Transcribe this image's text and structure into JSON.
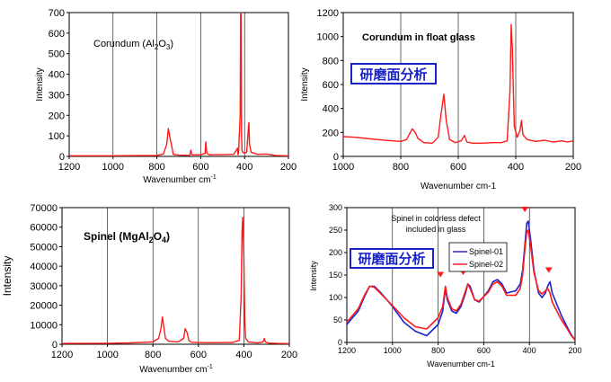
{
  "colors": {
    "series_red": "#ff1a1a",
    "series_blue": "#1a23c8",
    "marker": "#ff1a1a",
    "annotation_box": "#1a23c8"
  },
  "chart_data": [
    {
      "id": "corundum",
      "type": "line",
      "title": "Corundum (Al",
      "formula": {
        "base": "Corundum (Al",
        "sub1": "2",
        "mid": "O",
        "sub2": "3",
        "end": ")"
      },
      "xlabel": "Wavenumber cm",
      "xlabel_sup": "-1",
      "ylabel": "Intensity",
      "xlim": [
        1200,
        200
      ],
      "ylim": [
        0,
        700
      ],
      "xticks": [
        "1200",
        "1000",
        "800",
        "600",
        "400",
        "200"
      ],
      "yticks": [
        "0",
        "100",
        "200",
        "300",
        "400",
        "500",
        "600",
        "700"
      ],
      "grid": "vertical",
      "series": [
        {
          "color": "#ff1a1a",
          "x": [
            1200,
            1000,
            800,
            770,
            755,
            748,
            740,
            725,
            700,
            650,
            645,
            640,
            600,
            580,
            577,
            572,
            560,
            450,
            432,
            430,
            428,
            420,
            418,
            416,
            414,
            412,
            408,
            400,
            390,
            382,
            380,
            378,
            370,
            340,
            300,
            260,
            220,
            200
          ],
          "y": [
            3,
            3,
            5,
            12,
            60,
            135,
            90,
            10,
            6,
            5,
            30,
            8,
            8,
            15,
            70,
            15,
            8,
            10,
            40,
            8,
            12,
            200,
            700,
            690,
            120,
            30,
            20,
            15,
            20,
            150,
            165,
            60,
            20,
            10,
            12,
            5,
            3,
            3
          ]
        }
      ]
    },
    {
      "id": "corundum-float",
      "type": "line",
      "title": "Corundum in float glass",
      "annotation": "研磨面分析",
      "xlabel": "Wavenumber cm-1",
      "ylabel": "Intensity",
      "xlim": [
        1000,
        200
      ],
      "ylim": [
        0,
        1200
      ],
      "xticks": [
        "1000",
        "800",
        "600",
        "400",
        "200"
      ],
      "yticks": [
        "0",
        "200",
        "400",
        "600",
        "800",
        "1000",
        "1200"
      ],
      "grid": "vertical",
      "series": [
        {
          "color": "#ff1a1a",
          "x": [
            1000,
            960,
            920,
            880,
            840,
            800,
            780,
            760,
            750,
            740,
            720,
            690,
            670,
            660,
            650,
            642,
            630,
            610,
            590,
            578,
            570,
            550,
            520,
            480,
            450,
            430,
            420,
            416,
            412,
            405,
            395,
            385,
            380,
            375,
            360,
            330,
            300,
            270,
            240,
            220,
            200
          ],
          "y": [
            165,
            160,
            150,
            140,
            132,
            125,
            140,
            230,
            200,
            150,
            115,
            110,
            160,
            350,
            520,
            300,
            140,
            115,
            130,
            175,
            120,
            110,
            110,
            115,
            115,
            130,
            550,
            1100,
            900,
            250,
            160,
            220,
            300,
            180,
            140,
            125,
            135,
            120,
            130,
            120,
            130
          ]
        }
      ]
    },
    {
      "id": "spinel",
      "type": "line",
      "title": "Spinel (MgAl",
      "formula": {
        "base": "Spinel (MgAl",
        "sub1": "2",
        "mid": "O",
        "sub2": "4",
        "end": ")"
      },
      "xlabel": "Wavenumber cm",
      "xlabel_sup": "-1",
      "ylabel": "Intensity",
      "xlim": [
        1200,
        200
      ],
      "ylim": [
        0,
        70000
      ],
      "xticks": [
        "1200",
        "1000",
        "800",
        "600",
        "400",
        "200"
      ],
      "yticks": [
        "0",
        "10000",
        "20000",
        "30000",
        "40000",
        "50000",
        "60000",
        "70000"
      ],
      "grid": "vertical",
      "series": [
        {
          "color": "#ff1a1a",
          "x": [
            1200,
            1000,
            900,
            800,
            775,
            765,
            758,
            752,
            745,
            730,
            690,
            665,
            658,
            650,
            642,
            630,
            560,
            450,
            420,
            412,
            408,
            405,
            400,
            396,
            392,
            380,
            340,
            315,
            310,
            305,
            290,
            250,
            200
          ],
          "y": [
            400,
            500,
            700,
            1200,
            3000,
            8000,
            14000,
            9000,
            3000,
            1500,
            1200,
            3000,
            8000,
            6000,
            2000,
            1000,
            800,
            900,
            2000,
            25000,
            58000,
            65000,
            45000,
            12000,
            3000,
            1200,
            700,
            1200,
            3000,
            1200,
            600,
            400,
            300
          ]
        }
      ]
    },
    {
      "id": "spinel-defect",
      "type": "line",
      "title": "Spinel in colorless defect",
      "subtitle": "included in glass",
      "annotation": "研磨面分析",
      "xlabel": "Wavenumber cm-1",
      "ylabel": "Intensity",
      "xlim": [
        1200,
        200
      ],
      "ylim": [
        0,
        300
      ],
      "xticks": [
        "1200",
        "1000",
        "800",
        "600",
        "400",
        "200"
      ],
      "yticks": [
        "0",
        "50",
        "100",
        "150",
        "200",
        "250",
        "300"
      ],
      "grid": "vertical",
      "legend": "top-center",
      "peak_markers_x": [
        790,
        690,
        420,
        315
      ],
      "series": [
        {
          "name": "Spinel-01",
          "color": "#1a23c8",
          "x": [
            1200,
            1150,
            1120,
            1100,
            1080,
            1050,
            1000,
            950,
            900,
            850,
            800,
            780,
            768,
            760,
            740,
            720,
            700,
            680,
            670,
            660,
            640,
            620,
            580,
            560,
            540,
            520,
            500,
            460,
            440,
            430,
            420,
            412,
            405,
            395,
            380,
            360,
            345,
            330,
            320,
            310,
            300,
            280,
            260,
            240,
            220,
            200
          ],
          "y": [
            40,
            70,
            105,
            125,
            125,
            110,
            80,
            45,
            25,
            15,
            40,
            70,
            120,
            95,
            70,
            65,
            80,
            110,
            130,
            125,
            95,
            90,
            115,
            135,
            140,
            130,
            110,
            115,
            130,
            160,
            215,
            265,
            270,
            230,
            160,
            110,
            100,
            110,
            125,
            135,
            110,
            85,
            60,
            40,
            20,
            5
          ]
        },
        {
          "name": "Spinel-02",
          "color": "#ff1a1a",
          "x": [
            1200,
            1150,
            1120,
            1100,
            1080,
            1050,
            1000,
            950,
            900,
            850,
            800,
            780,
            768,
            760,
            740,
            720,
            700,
            680,
            670,
            660,
            640,
            620,
            580,
            560,
            540,
            520,
            500,
            460,
            440,
            430,
            420,
            412,
            405,
            395,
            380,
            360,
            345,
            330,
            320,
            310,
            300,
            280,
            260,
            240,
            220,
            200
          ],
          "y": [
            45,
            75,
            108,
            125,
            123,
            108,
            82,
            55,
            35,
            30,
            55,
            80,
            125,
            100,
            75,
            70,
            85,
            115,
            130,
            120,
            95,
            92,
            112,
            130,
            135,
            125,
            105,
            105,
            120,
            150,
            205,
            245,
            250,
            215,
            155,
            115,
            108,
            115,
            120,
            110,
            90,
            70,
            50,
            35,
            18,
            5
          ]
        }
      ]
    }
  ]
}
